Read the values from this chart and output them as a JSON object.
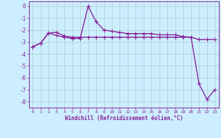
{
  "x": [
    0,
    1,
    2,
    3,
    4,
    5,
    6,
    7,
    8,
    9,
    10,
    11,
    12,
    13,
    14,
    15,
    16,
    17,
    18,
    19,
    20,
    21,
    22,
    23
  ],
  "line1": [
    -3.4,
    -3.1,
    -2.25,
    -2.2,
    -2.5,
    -2.6,
    -2.6,
    -2.6,
    -2.6,
    -2.6,
    -2.6,
    -2.6,
    -2.6,
    -2.6,
    -2.6,
    -2.6,
    -2.6,
    -2.6,
    -2.6,
    -2.6,
    -2.6,
    -2.8,
    -2.8,
    -2.8
  ],
  "line2": [
    -3.4,
    -3.1,
    -2.25,
    -2.45,
    -2.6,
    -2.7,
    -2.7,
    0.0,
    -1.3,
    -2.0,
    -2.1,
    -2.2,
    -2.3,
    -2.3,
    -2.3,
    -2.3,
    -2.4,
    -2.4,
    -2.4,
    -2.55,
    -2.6,
    -6.5,
    -7.8,
    -7.0
  ],
  "bg_color": "#cceeff",
  "line_color": "#882299",
  "grid_color": "#aacccc",
  "ylabel_ticks": [
    0,
    -1,
    -2,
    -3,
    -4,
    -5,
    -6,
    -7,
    -8
  ],
  "xlabel": "Windchill (Refroidissement éolien,°C)",
  "xtick_labels": [
    "0",
    "1",
    "2",
    "3",
    "4",
    "5",
    "6",
    "7",
    "8",
    "9",
    "10",
    "11",
    "12",
    "13",
    "14",
    "15",
    "16",
    "17",
    "18",
    "19",
    "20",
    "21",
    "22",
    "23"
  ],
  "ylim": [
    -8.5,
    0.4
  ],
  "xlim": [
    -0.5,
    23.5
  ],
  "marker": "+",
  "markersize": 4,
  "linewidth": 1.0,
  "title": ""
}
